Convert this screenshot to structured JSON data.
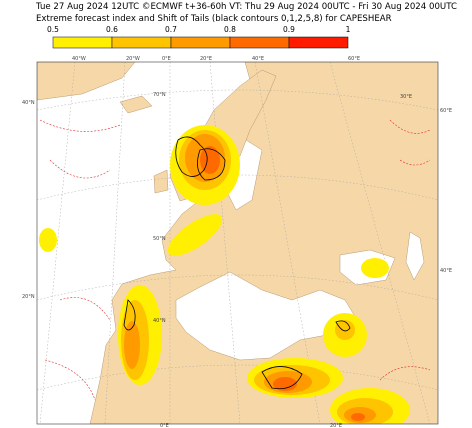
{
  "header": {
    "line1": "Tue 27 Aug 2024 12UTC ©ECMWF t+36-60h  VT: Thu 29 Aug 2024 00UTC - Fri 30 Aug 2024 00UTC",
    "line2": "Extreme forecast index and Shift of Tails (black contours 0,1,2,5,8) for CAPESHEAR"
  },
  "legend": {
    "labels": [
      "0.5",
      "0.6",
      "0.7",
      "0.8",
      "0.9",
      "1"
    ],
    "colors": [
      "#ffef00",
      "#ffc400",
      "#ff9a00",
      "#ff6a00",
      "#ff1a00"
    ]
  },
  "graticule": {
    "top": [
      "40°W",
      "20°W",
      "0°E",
      "20°E",
      "40°E",
      "60°E"
    ],
    "left": [
      "40°N",
      "20°N"
    ],
    "right": [
      "60°E",
      "40°E"
    ],
    "bottom": [
      "0°E",
      "20°E"
    ],
    "inner": [
      "70°N",
      "50°N",
      "40°N",
      "30°E"
    ]
  }
}
